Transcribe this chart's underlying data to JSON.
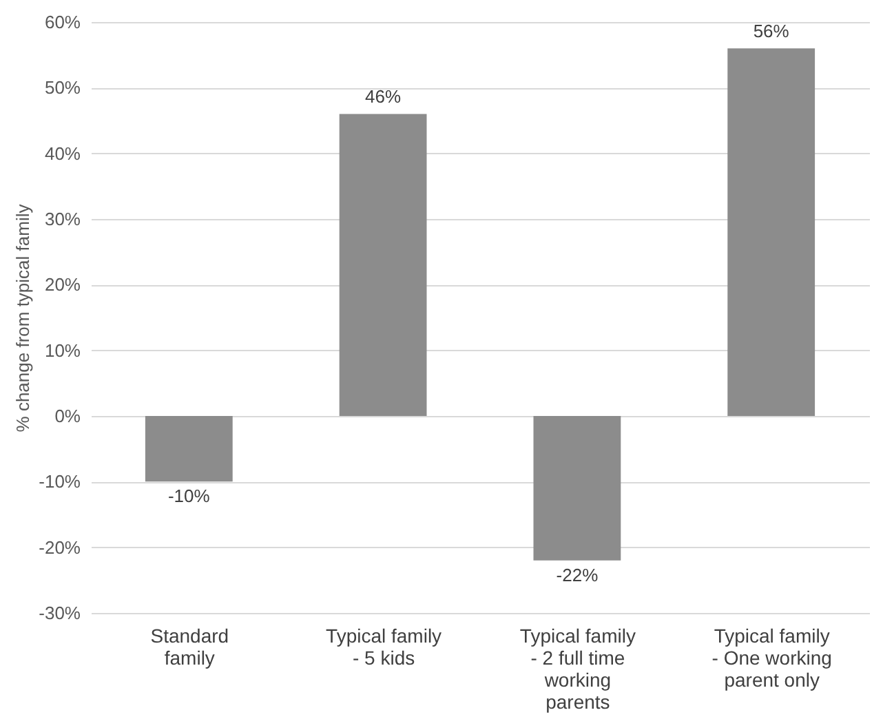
{
  "chart_data": {
    "type": "bar",
    "ylabel": "% change from typical family",
    "categories": [
      "Standard family",
      "Typical family - 5 kids",
      "Typical family - 2 full time working parents",
      "Typical family - One working parent only"
    ],
    "values": [
      -10,
      46,
      -22,
      56
    ],
    "color": "#8c8c8c",
    "value_labels": [
      "-10%",
      "46%",
      "-22%",
      "56%"
    ],
    "ylim": [
      -30,
      60
    ],
    "yticks": [
      {
        "value": -30,
        "label": "-30%"
      },
      {
        "value": -20,
        "label": "-20%"
      },
      {
        "value": -10,
        "label": "-10%"
      },
      {
        "value": 0,
        "label": "0%"
      },
      {
        "value": 10,
        "label": "10%"
      },
      {
        "value": 20,
        "label": "20%"
      },
      {
        "value": 30,
        "label": "30%"
      },
      {
        "value": 40,
        "label": "40%"
      },
      {
        "value": 50,
        "label": "50%"
      },
      {
        "value": 60,
        "label": "60%"
      }
    ],
    "grid": "y"
  }
}
